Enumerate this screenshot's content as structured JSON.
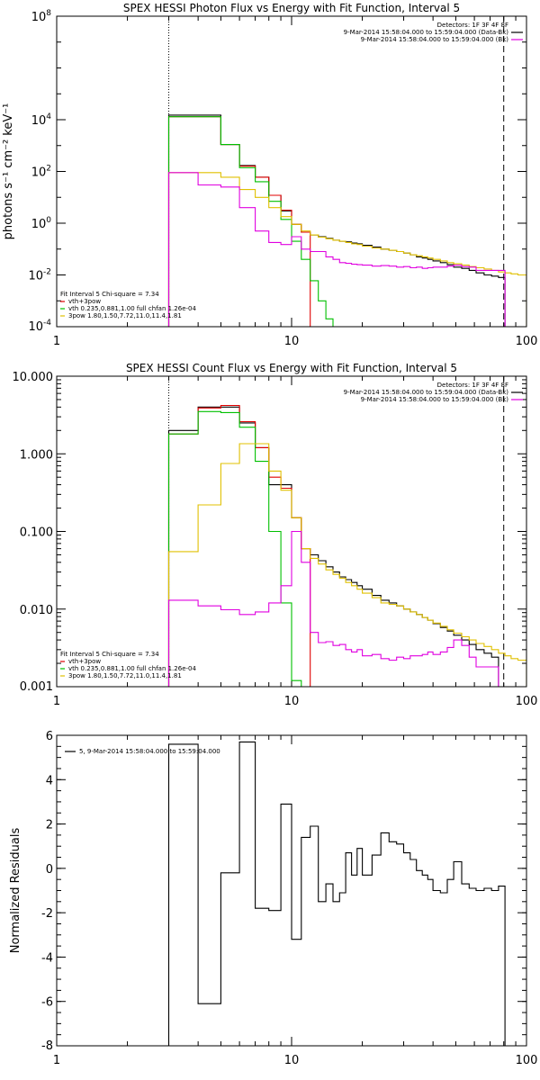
{
  "chart_data": [
    {
      "type": "line",
      "title": "SPEX HESSI Photon Flux vs Energy with Fit Function, Interval 5",
      "ylabel": "photons s⁻¹ cm⁻² keV⁻¹",
      "xlabel": "",
      "xscale": "log",
      "yscale": "log",
      "xlim": [
        1,
        100
      ],
      "ylim": [
        0.0001,
        100000000
      ],
      "xticks": [
        {
          "v": 1,
          "label": "1"
        },
        {
          "v": 10,
          "label": "10"
        },
        {
          "v": 100,
          "label": "100"
        }
      ],
      "yticks": [
        {
          "v": 0.0001,
          "base": "10",
          "exp": "-4"
        },
        {
          "v": 0.01,
          "base": "10",
          "exp": "-2"
        },
        {
          "v": 1,
          "base": "10",
          "exp": "0"
        },
        {
          "v": 100,
          "base": "10",
          "exp": "2"
        },
        {
          "v": 10000,
          "base": "10",
          "exp": "4"
        },
        {
          "v": 100000000,
          "base": "10",
          "exp": "8"
        }
      ],
      "vlines": [
        {
          "x": 3,
          "style": "dotted"
        },
        {
          "x": 80,
          "style": "dashed"
        }
      ],
      "legend_top": [
        {
          "text": "Detectors: 1F 3F 4F 8F",
          "color": ""
        },
        {
          "text": "9-Mar-2014 15:58:04.000 to 15:59:04.000 (Data-Bk)",
          "color": "#000000"
        },
        {
          "text": "9-Mar-2014 15:58:04.000 to 15:59:04.000 (Bk)",
          "color": "#e000e0"
        }
      ],
      "legend_bottom": [
        {
          "text": "Fit Interval 5   Chi-square = 7.34",
          "color": ""
        },
        {
          "text": "vth+3pow",
          "color": "#e00000"
        },
        {
          "text": "vth 0.235,0.881,1.00  full chfan 1.26e-04",
          "color": "#00c000"
        },
        {
          "text": "3pow 1.80,1.50,7.72,11.0,11.4,1.81",
          "color": "#e0c000"
        }
      ],
      "edges": [
        3,
        4,
        5,
        6,
        7,
        8,
        9,
        10,
        11,
        12,
        13,
        14,
        15,
        16,
        17,
        18,
        19,
        20,
        22,
        24,
        26,
        28,
        30,
        32,
        34,
        36,
        38,
        40,
        43,
        46,
        49,
        53,
        57,
        61,
        66,
        71,
        76,
        81,
        86,
        92,
        100
      ],
      "series": [
        {
          "name": "9-Mar-2014 15:58:04.000 to 15:59:04.000 (Data-Bk)",
          "color": "#000000",
          "values": [
            15000,
            15000,
            1100,
            170,
            60,
            12,
            3.0,
            0.9,
            0.45,
            0.35,
            0.3,
            0.26,
            0.22,
            0.2,
            0.19,
            0.17,
            0.16,
            0.14,
            0.12,
            0.1,
            0.09,
            0.08,
            0.07,
            0.06,
            0.05,
            0.045,
            0.04,
            0.035,
            0.03,
            0.025,
            0.02,
            0.018,
            0.015,
            0.012,
            0.01,
            0.009,
            0.008,
            null,
            null,
            null
          ]
        },
        {
          "name": "vth+3pow",
          "color": "#e00000",
          "values": [
            13000,
            13000,
            1100,
            160,
            60,
            12,
            3.2,
            0.9,
            0.45,
            null,
            null,
            null,
            null,
            null,
            null,
            null,
            null,
            null,
            null,
            null,
            null,
            null,
            null,
            null,
            null,
            null,
            null,
            null,
            null,
            null,
            null,
            null,
            null,
            null,
            null,
            null,
            null,
            null,
            null,
            null
          ]
        },
        {
          "name": "vth",
          "color": "#00c000",
          "values": [
            13000,
            13000,
            1100,
            140,
            40,
            7,
            1.4,
            0.2,
            0.04,
            0.006,
            0.001,
            0.0002,
            8e-05,
            null,
            null,
            null,
            null,
            null,
            null,
            null,
            null,
            null,
            null,
            null,
            null,
            null,
            null,
            null,
            null,
            null,
            null,
            null,
            null,
            null,
            null,
            null,
            null,
            null,
            null,
            null
          ]
        },
        {
          "name": "3pow",
          "color": "#e0c000",
          "values": [
            90,
            90,
            60,
            20,
            10,
            4,
            1.8,
            0.9,
            0.5,
            0.35,
            0.29,
            0.25,
            0.22,
            0.2,
            0.18,
            0.16,
            0.15,
            0.13,
            0.11,
            0.1,
            0.09,
            0.08,
            0.07,
            0.06,
            0.055,
            0.05,
            0.045,
            0.04,
            0.035,
            0.03,
            0.027,
            0.024,
            0.021,
            0.019,
            0.017,
            0.015,
            0.013,
            0.012,
            0.011,
            0.01
          ]
        },
        {
          "name": "9-Mar-2014 15:58:04.000 to 15:59:04.000 (Bk)",
          "color": "#e000e0",
          "values": [
            90,
            30,
            25,
            4,
            0.5,
            0.18,
            0.15,
            0.3,
            0.1,
            0.08,
            0.08,
            0.05,
            0.04,
            0.03,
            0.028,
            0.026,
            0.025,
            0.024,
            0.022,
            0.023,
            0.022,
            0.02,
            0.021,
            0.019,
            0.02,
            0.018,
            0.019,
            0.02,
            0.02,
            0.022,
            0.024,
            0.021,
            0.02,
            0.015,
            0.015,
            0.015,
            0.015,
            null,
            null,
            null
          ]
        }
      ]
    },
    {
      "type": "line",
      "title": "SPEX HESSI Count Flux vs Energy with Fit Function, Interval 5",
      "ylabel": "",
      "xlabel": "",
      "xscale": "log",
      "yscale": "log",
      "xlim": [
        1,
        100
      ],
      "ylim": [
        0.001,
        10
      ],
      "xticks": [
        {
          "v": 1,
          "label": "1"
        },
        {
          "v": 10,
          "label": "10"
        },
        {
          "v": 100,
          "label": "100"
        }
      ],
      "yticks": [
        {
          "v": 0.001,
          "label": "0.001"
        },
        {
          "v": 0.01,
          "label": "0.010"
        },
        {
          "v": 0.1,
          "label": "0.100"
        },
        {
          "v": 1,
          "label": "1.000"
        },
        {
          "v": 10,
          "label": "10.000"
        }
      ],
      "vlines": [
        {
          "x": 3,
          "style": "dotted"
        },
        {
          "x": 80,
          "style": "dashed"
        }
      ],
      "legend_top": [
        {
          "text": "Detectors: 1F 3F 4F 8F",
          "color": ""
        },
        {
          "text": "9-Mar-2014 15:58:04.000 to 15:59:04.000 (Data-Bk)",
          "color": "#000000"
        },
        {
          "text": "9-Mar-2014 15:58:04.000 to 15:59:04.000 (Bk)",
          "color": "#e000e0"
        }
      ],
      "legend_bottom": [
        {
          "text": "Fit Interval 5   Chi-square = 7.34",
          "color": ""
        },
        {
          "text": "vth+3pow",
          "color": "#e00000"
        },
        {
          "text": "vth 0.235,0.881,1.00  full chfan 1.26e-04",
          "color": "#00c000"
        },
        {
          "text": "3pow 1.80,1.50,7.72,11.0,11.4,1.81",
          "color": "#e0c000"
        }
      ],
      "edges": [
        3,
        4,
        5,
        6,
        7,
        8,
        9,
        10,
        11,
        12,
        13,
        14,
        15,
        16,
        17,
        18,
        19,
        20,
        22,
        24,
        26,
        28,
        30,
        32,
        34,
        36,
        38,
        40,
        43,
        46,
        49,
        53,
        57,
        61,
        66,
        71,
        76,
        81,
        86,
        92,
        100
      ],
      "series": [
        {
          "name": "9-Mar-2014 15:58:04.000 to 15:59:04.000 (Data-Bk)",
          "color": "#000000",
          "values": [
            2.0,
            4.0,
            4.0,
            2.5,
            1.2,
            0.4,
            0.4,
            0.15,
            0.06,
            0.05,
            0.042,
            0.035,
            0.03,
            0.026,
            0.024,
            0.022,
            0.02,
            0.018,
            0.015,
            0.013,
            0.012,
            0.011,
            0.01,
            0.0092,
            0.0085,
            0.0078,
            0.0072,
            0.0065,
            0.0058,
            0.0052,
            0.0046,
            0.004,
            0.0035,
            0.003,
            0.0027,
            0.0024,
            null,
            null,
            null,
            null
          ]
        },
        {
          "name": "vth+3pow",
          "color": "#e00000",
          "values": [
            1.8,
            3.9,
            4.2,
            2.6,
            1.2,
            0.5,
            0.36,
            0.15,
            0.06,
            null,
            null,
            null,
            null,
            null,
            null,
            null,
            null,
            null,
            null,
            null,
            null,
            null,
            null,
            null,
            null,
            null,
            null,
            null,
            null,
            null,
            null,
            null,
            null,
            null,
            null,
            null,
            null,
            null,
            null,
            null
          ]
        },
        {
          "name": "vth",
          "color": "#00c000",
          "values": [
            1.8,
            3.5,
            3.4,
            2.2,
            0.8,
            0.1,
            0.012,
            0.0012,
            null,
            null,
            null,
            null,
            null,
            null,
            null,
            null,
            null,
            null,
            null,
            null,
            null,
            null,
            null,
            null,
            null,
            null,
            null,
            null,
            null,
            null,
            null,
            null,
            null,
            null,
            null,
            null,
            null,
            null,
            null,
            null
          ]
        },
        {
          "name": "3pow",
          "color": "#e0c000",
          "values": [
            0.055,
            0.22,
            0.75,
            1.35,
            1.35,
            0.6,
            0.34,
            0.15,
            0.06,
            0.045,
            0.038,
            0.032,
            0.028,
            0.025,
            0.022,
            0.02,
            0.018,
            0.016,
            0.014,
            0.012,
            0.0115,
            0.011,
            0.01,
            0.0092,
            0.0085,
            0.0078,
            0.0072,
            0.0066,
            0.006,
            0.0054,
            0.0049,
            0.0044,
            0.004,
            0.0036,
            0.0033,
            0.003,
            0.0027,
            0.0025,
            0.0023,
            0.0022
          ]
        },
        {
          "name": "9-Mar-2014 15:58:04.000 to 15:59:04.000 (Bk)",
          "color": "#e000e0",
          "values": [
            0.013,
            0.011,
            0.0098,
            0.0085,
            0.0092,
            0.012,
            0.02,
            0.1,
            0.04,
            0.005,
            0.0037,
            0.0038,
            0.0034,
            0.0035,
            0.003,
            0.0028,
            0.003,
            0.0025,
            0.0026,
            0.0023,
            0.0022,
            0.0024,
            0.0023,
            0.0025,
            0.0025,
            0.0026,
            0.0028,
            0.0026,
            0.0028,
            0.0032,
            0.004,
            0.0034,
            0.0024,
            0.0018,
            0.0018,
            0.0018,
            null,
            null,
            null,
            null
          ]
        }
      ]
    },
    {
      "type": "line",
      "title": "",
      "ylabel": "Normalized Residuals",
      "xlabel": "",
      "xscale": "log",
      "yscale": "linear",
      "xlim": [
        1,
        100
      ],
      "ylim": [
        -8,
        6
      ],
      "xticks": [
        {
          "v": 1,
          "label": "1"
        },
        {
          "v": 10,
          "label": "10"
        },
        {
          "v": 100,
          "label": "100"
        }
      ],
      "yticks": [
        {
          "v": -8,
          "label": "-8"
        },
        {
          "v": -6,
          "label": "-6"
        },
        {
          "v": -4,
          "label": "-4"
        },
        {
          "v": -2,
          "label": "-2"
        },
        {
          "v": 0,
          "label": "0"
        },
        {
          "v": 2,
          "label": "2"
        },
        {
          "v": 4,
          "label": "4"
        },
        {
          "v": 6,
          "label": "6"
        }
      ],
      "vlines": [],
      "legend_top": [
        {
          "text": "5, 9-Mar-2014 15:58:04.000 to 15:59:04.000",
          "color": "#000000"
        }
      ],
      "legend_bottom": [],
      "edges": [
        3,
        4,
        5,
        6,
        7,
        8,
        9,
        10,
        11,
        12,
        13,
        14,
        15,
        16,
        17,
        18,
        19,
        20,
        22,
        24,
        26,
        28,
        30,
        32,
        34,
        36,
        38,
        40,
        43,
        46,
        49,
        53,
        57,
        61,
        66,
        71,
        76,
        81
      ],
      "series": [
        {
          "name": "5, 9-Mar-2014 15:58:04.000 to 15:59:04.000",
          "color": "#000000",
          "values": [
            5.6,
            -6.1,
            -0.2,
            5.7,
            -1.8,
            -1.9,
            2.9,
            -3.2,
            1.4,
            1.9,
            -1.5,
            -0.7,
            -1.5,
            -1.1,
            0.7,
            -0.3,
            0.9,
            -0.3,
            0.6,
            1.6,
            1.2,
            1.1,
            0.7,
            0.4,
            -0.1,
            -0.3,
            -0.5,
            -1.0,
            -1.1,
            -0.5,
            0.3,
            -0.7,
            -0.9,
            -1.0,
            -0.9,
            -1.0,
            -0.8
          ]
        }
      ]
    }
  ]
}
